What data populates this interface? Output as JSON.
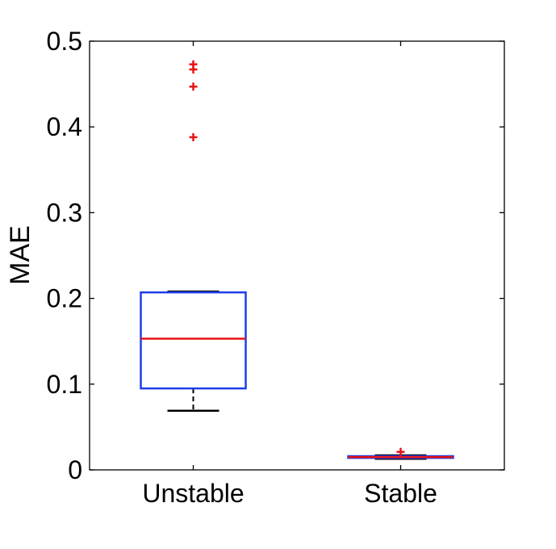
{
  "chart_data": {
    "type": "box",
    "title": "",
    "xlabel": "",
    "ylabel": "MAE",
    "ylim": [
      0,
      0.5
    ],
    "yticks": [
      0,
      0.1,
      0.2,
      0.3,
      0.4,
      0.5
    ],
    "ytick_labels": [
      "0",
      "0.1",
      "0.2",
      "0.3",
      "0.4",
      "0.5"
    ],
    "categories": [
      "Unstable",
      "Stable"
    ],
    "boxes": [
      {
        "category": "Unstable",
        "whisker_low": 0.069,
        "q1": 0.095,
        "median": 0.153,
        "q3": 0.207,
        "whisker_high": 0.208,
        "outliers": [
          0.388,
          0.447,
          0.467,
          0.473
        ]
      },
      {
        "category": "Stable",
        "whisker_low": 0.013,
        "q1": 0.014,
        "median": 0.015,
        "q3": 0.016,
        "whisker_high": 0.017,
        "outliers": [
          0.021
        ]
      }
    ],
    "grid": false,
    "legend": "none",
    "colors": {
      "box": "#1f3fe8",
      "median": "#e81414",
      "whisker": "#000000",
      "outlier": "#e81414",
      "axes": "#000000"
    }
  }
}
